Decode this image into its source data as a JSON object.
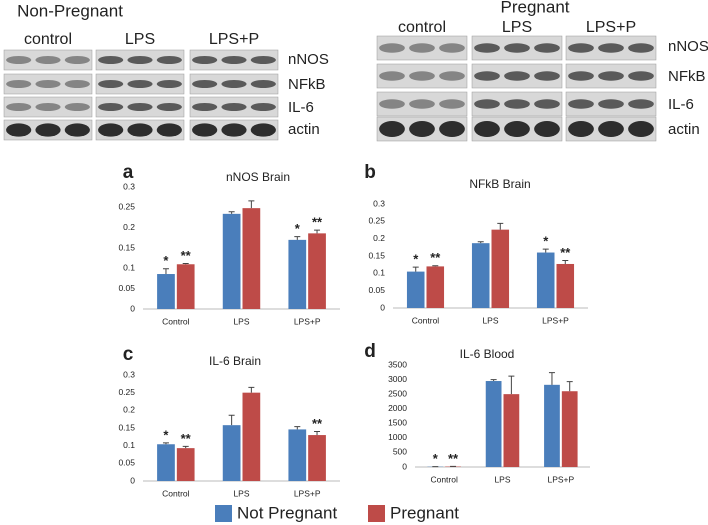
{
  "blots": [
    {
      "title": "Non-Pregnant",
      "groups": [
        "control",
        "LPS",
        "LPS+P"
      ],
      "proteins": [
        "nNOS",
        "NFkB",
        "IL-6",
        "actin"
      ]
    },
    {
      "title": "Pregnant",
      "groups": [
        "control",
        "LPS",
        "LPS+P"
      ],
      "proteins": [
        "nNOS",
        "NFkB",
        "IL-6",
        "actin"
      ]
    }
  ],
  "chart_data": [
    {
      "type": "bar",
      "panel": "a",
      "title": "nNOS Brain",
      "categories": [
        "Control",
        "LPS",
        "LPS+P"
      ],
      "series": [
        {
          "name": "Not Pregnant",
          "color": "#4a7ebb",
          "values": [
            0.086,
            0.234,
            0.17
          ],
          "errors": [
            0.013,
            0.005,
            0.008
          ],
          "markers": [
            "*",
            null,
            "*"
          ]
        },
        {
          "name": "Pregnant",
          "color": "#be4b48",
          "values": [
            0.11,
            0.248,
            0.186
          ],
          "errors": [
            0.002,
            0.018,
            0.008
          ],
          "markers": [
            "**",
            null,
            "**"
          ]
        }
      ],
      "ylim": [
        0,
        0.3
      ],
      "yticks": [
        0,
        0.05,
        0.1,
        0.15,
        0.2,
        0.25,
        0.3
      ],
      "grid": false
    },
    {
      "type": "bar",
      "panel": "b",
      "title": "NFkB Brain",
      "categories": [
        "Control",
        "LPS",
        "LPS+P"
      ],
      "series": [
        {
          "name": "Not Pregnant",
          "color": "#4a7ebb",
          "values": [
            0.105,
            0.187,
            0.16
          ],
          "errors": [
            0.013,
            0.004,
            0.01
          ],
          "markers": [
            "*",
            null,
            "*"
          ]
        },
        {
          "name": "Pregnant",
          "color": "#be4b48",
          "values": [
            0.12,
            0.226,
            0.127
          ],
          "errors": [
            0.002,
            0.018,
            0.01
          ],
          "markers": [
            "**",
            null,
            "**"
          ]
        }
      ],
      "ylim": [
        0,
        0.3
      ],
      "yticks": [
        0,
        0.05,
        0.1,
        0.15,
        0.2,
        0.25,
        0.3
      ],
      "grid": false
    },
    {
      "type": "bar",
      "panel": "c",
      "title": "IL-6 Brain",
      "categories": [
        "Control",
        "LPS",
        "LPS+P"
      ],
      "series": [
        {
          "name": "Not Pregnant",
          "color": "#4a7ebb",
          "values": [
            0.104,
            0.158,
            0.146
          ],
          "errors": [
            0.004,
            0.028,
            0.008
          ],
          "markers": [
            "*",
            null,
            null
          ]
        },
        {
          "name": "Pregnant",
          "color": "#be4b48",
          "values": [
            0.093,
            0.25,
            0.13
          ],
          "errors": [
            0.005,
            0.015,
            0.01
          ],
          "markers": [
            "**",
            null,
            "**"
          ]
        }
      ],
      "ylim": [
        0,
        0.3
      ],
      "yticks": [
        0,
        0.05,
        0.1,
        0.15,
        0.2,
        0.25,
        0.3
      ],
      "grid": false
    },
    {
      "type": "bar",
      "panel": "d",
      "title": "IL-6 Blood",
      "categories": [
        "Control",
        "LPS",
        "LPS+P"
      ],
      "series": [
        {
          "name": "Not Pregnant",
          "color": "#4a7ebb",
          "values": [
            10,
            2950,
            2820
          ],
          "errors": [
            5,
            50,
            420
          ],
          "markers": [
            "*",
            null,
            null
          ]
        },
        {
          "name": "Pregnant",
          "color": "#be4b48",
          "values": [
            15,
            2500,
            2600
          ],
          "errors": [
            5,
            620,
            330
          ],
          "markers": [
            "**",
            null,
            null
          ]
        }
      ],
      "ylim": [
        0,
        3500
      ],
      "yticks": [
        0,
        500,
        1000,
        1500,
        2000,
        2500,
        3000,
        3500
      ],
      "grid": false
    }
  ]
}
